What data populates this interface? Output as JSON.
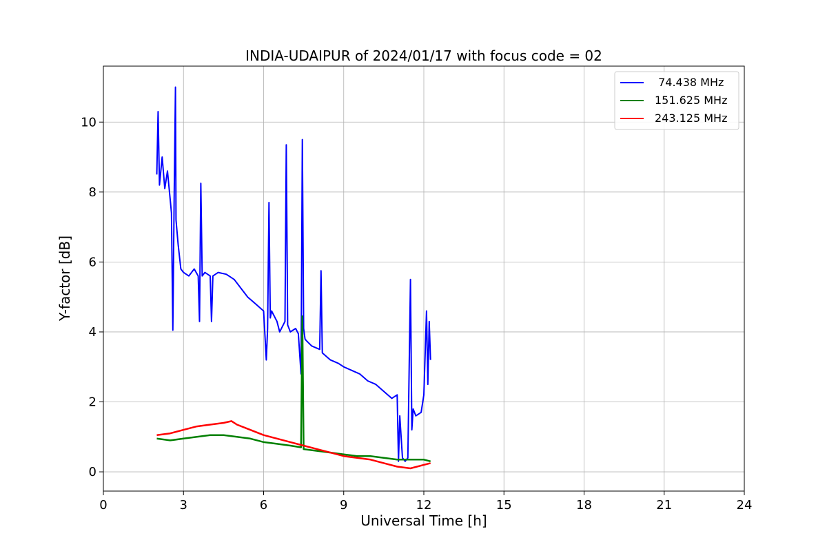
{
  "chart_data": {
    "type": "line",
    "title": "INDIA-UDAIPUR of 2024/01/17 with focus code = 02",
    "xlabel": "Universal Time [h]",
    "ylabel": "Y-factor [dB]",
    "xlim": [
      0,
      24
    ],
    "ylim": [
      -0.55,
      11.6
    ],
    "xticks": [
      0,
      3,
      6,
      9,
      12,
      15,
      18,
      21,
      24
    ],
    "xtick_labels": [
      "0",
      "3",
      "6",
      "9",
      "12",
      "15",
      "18",
      "21",
      "24"
    ],
    "yticks": [
      0,
      2,
      4,
      6,
      8,
      10
    ],
    "ytick_labels": [
      "0",
      "2",
      "4",
      "6",
      "8",
      "10"
    ],
    "grid": true,
    "legend_position": "top-right",
    "series": [
      {
        "name": " 74.438 MHz",
        "color": "#0000ff",
        "x": [
          2.0,
          2.05,
          2.1,
          2.2,
          2.3,
          2.4,
          2.5,
          2.55,
          2.6,
          2.65,
          2.7,
          2.72,
          2.8,
          2.9,
          3.0,
          3.2,
          3.4,
          3.55,
          3.6,
          3.65,
          3.7,
          3.8,
          4.0,
          4.05,
          4.1,
          4.3,
          4.6,
          4.9,
          5.2,
          5.4,
          5.7,
          6.0,
          6.1,
          6.15,
          6.2,
          6.25,
          6.3,
          6.5,
          6.6,
          6.8,
          6.85,
          6.9,
          7.0,
          7.2,
          7.3,
          7.4,
          7.45,
          7.5,
          7.55,
          7.6,
          7.8,
          8.1,
          8.15,
          8.2,
          8.5,
          8.8,
          9.0,
          9.3,
          9.6,
          9.9,
          10.2,
          10.5,
          10.8,
          11.0,
          11.05,
          11.1,
          11.2,
          11.3,
          11.4,
          11.5,
          11.55,
          11.6,
          11.7,
          11.9,
          12.0,
          12.1,
          12.15,
          12.2,
          12.25
        ],
        "y": [
          8.5,
          10.3,
          8.2,
          9.0,
          8.1,
          8.6,
          7.8,
          7.4,
          4.05,
          7.8,
          11.0,
          7.2,
          6.5,
          5.8,
          5.7,
          5.6,
          5.8,
          5.6,
          4.3,
          8.25,
          5.6,
          5.7,
          5.6,
          4.3,
          5.6,
          5.7,
          5.65,
          5.5,
          5.2,
          5.0,
          4.8,
          4.6,
          3.2,
          4.1,
          7.7,
          4.4,
          4.6,
          4.3,
          4.0,
          4.3,
          9.35,
          4.2,
          4.0,
          4.1,
          3.95,
          2.8,
          9.5,
          4.1,
          3.8,
          3.75,
          3.6,
          3.5,
          5.75,
          3.4,
          3.2,
          3.1,
          3.0,
          2.9,
          2.8,
          2.6,
          2.5,
          2.3,
          2.1,
          2.2,
          0.3,
          1.6,
          0.4,
          0.3,
          0.4,
          5.5,
          1.2,
          1.8,
          1.6,
          1.7,
          2.2,
          4.6,
          2.5,
          4.3,
          3.2
        ]
      },
      {
        "name": "151.625 MHz",
        "color": "#008000",
        "x": [
          2.0,
          2.5,
          3.0,
          3.5,
          4.0,
          4.5,
          5.0,
          5.5,
          6.0,
          6.5,
          7.0,
          7.4,
          7.45,
          7.5,
          8.0,
          8.5,
          9.0,
          9.5,
          10.0,
          10.5,
          11.0,
          11.5,
          12.0,
          12.25
        ],
        "y": [
          0.95,
          0.9,
          0.95,
          1.0,
          1.05,
          1.05,
          1.0,
          0.95,
          0.85,
          0.8,
          0.75,
          0.7,
          4.45,
          0.65,
          0.6,
          0.55,
          0.5,
          0.45,
          0.45,
          0.4,
          0.35,
          0.35,
          0.35,
          0.3
        ]
      },
      {
        "name": "243.125 MHz",
        "color": "#ff0000",
        "x": [
          2.0,
          2.5,
          3.0,
          3.5,
          4.0,
          4.5,
          4.8,
          5.0,
          5.5,
          6.0,
          6.5,
          7.0,
          7.5,
          8.0,
          8.5,
          9.0,
          9.5,
          10.0,
          10.5,
          11.0,
          11.5,
          12.0,
          12.25
        ],
        "y": [
          1.05,
          1.1,
          1.2,
          1.3,
          1.35,
          1.4,
          1.45,
          1.35,
          1.2,
          1.05,
          0.95,
          0.85,
          0.75,
          0.65,
          0.55,
          0.45,
          0.4,
          0.35,
          0.25,
          0.15,
          0.1,
          0.2,
          0.25
        ]
      }
    ]
  }
}
